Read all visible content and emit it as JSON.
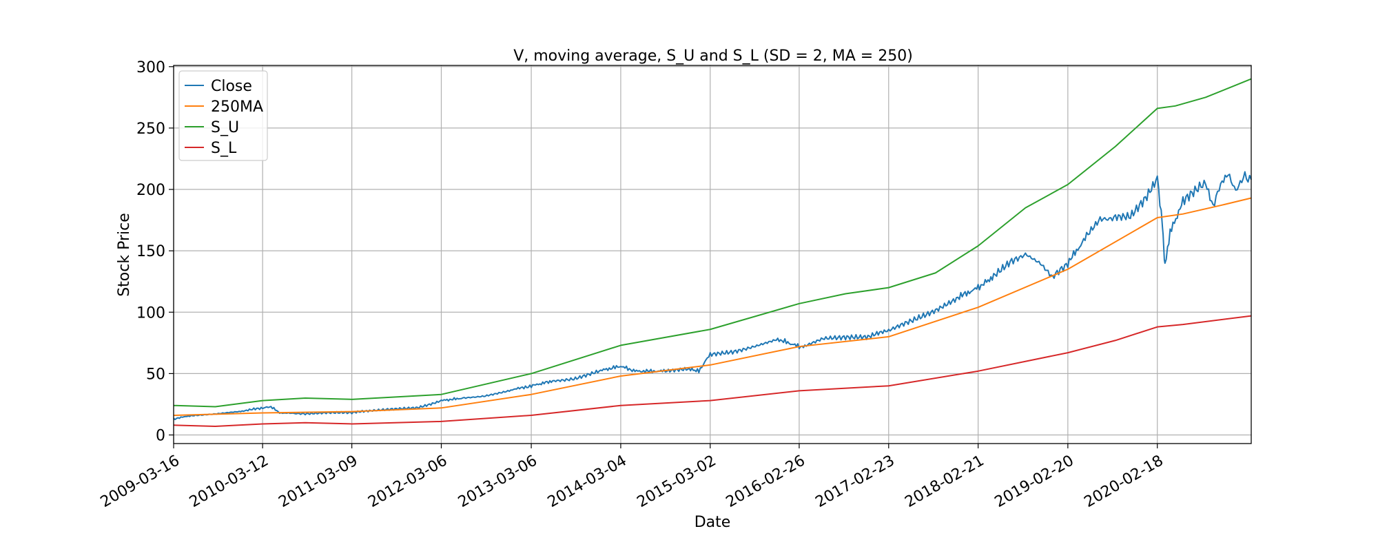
{
  "chart_data": {
    "type": "line",
    "title": "V, moving average, S_U and S_L (SD = 2, MA = 250)",
    "xlabel": "Date",
    "ylabel": "Stock Price",
    "x_ticks": [
      "2009-03-16",
      "2010-03-12",
      "2011-03-09",
      "2012-03-06",
      "2013-03-06",
      "2014-03-04",
      "2015-03-02",
      "2016-02-26",
      "2017-02-23",
      "2018-02-21",
      "2019-02-20",
      "2020-02-18"
    ],
    "y_ticks": [
      0,
      50,
      100,
      150,
      200,
      250,
      300
    ],
    "ylim": [
      -7,
      301
    ],
    "xlim": [
      "2009-03-16",
      "2021-03-05"
    ],
    "grid": true,
    "legend_position": "top-left",
    "series": [
      {
        "name": "Close",
        "color": "#1f77b4",
        "points": [
          [
            "2009-03-16",
            13
          ],
          [
            "2009-06-01",
            16
          ],
          [
            "2009-09-01",
            17
          ],
          [
            "2009-12-01",
            19
          ],
          [
            "2010-03-12",
            22
          ],
          [
            "2010-04-15",
            23
          ],
          [
            "2010-05-20",
            18
          ],
          [
            "2010-07-01",
            18
          ],
          [
            "2010-09-01",
            17
          ],
          [
            "2010-12-01",
            18
          ],
          [
            "2011-03-09",
            18
          ],
          [
            "2011-06-01",
            20
          ],
          [
            "2011-09-01",
            21
          ],
          [
            "2011-12-01",
            22
          ],
          [
            "2012-03-06",
            28
          ],
          [
            "2012-06-01",
            30
          ],
          [
            "2012-09-01",
            32
          ],
          [
            "2012-12-01",
            36
          ],
          [
            "2013-03-06",
            40
          ],
          [
            "2013-06-01",
            44
          ],
          [
            "2013-09-01",
            46
          ],
          [
            "2013-12-01",
            52
          ],
          [
            "2014-03-04",
            56
          ],
          [
            "2014-05-01",
            52
          ],
          [
            "2014-09-01",
            52
          ],
          [
            "2014-12-01",
            54
          ],
          [
            "2015-01-15",
            52
          ],
          [
            "2015-03-02",
            66
          ],
          [
            "2015-06-01",
            68
          ],
          [
            "2015-09-01",
            72
          ],
          [
            "2015-12-01",
            78
          ],
          [
            "2016-02-26",
            72
          ],
          [
            "2016-03-20",
            72
          ],
          [
            "2016-06-01",
            78
          ],
          [
            "2016-09-01",
            80
          ],
          [
            "2016-12-01",
            80
          ],
          [
            "2017-02-23",
            85
          ],
          [
            "2017-06-01",
            93
          ],
          [
            "2017-09-01",
            102
          ],
          [
            "2017-12-01",
            112
          ],
          [
            "2018-02-21",
            120
          ],
          [
            "2018-05-01",
            130
          ],
          [
            "2018-07-01",
            140
          ],
          [
            "2018-09-01",
            148
          ],
          [
            "2018-11-01",
            140
          ],
          [
            "2018-12-20",
            128
          ],
          [
            "2019-02-20",
            140
          ],
          [
            "2019-05-01",
            160
          ],
          [
            "2019-07-01",
            175
          ],
          [
            "2019-09-01",
            178
          ],
          [
            "2019-11-01",
            178
          ],
          [
            "2020-01-01",
            192
          ],
          [
            "2020-02-18",
            210
          ],
          [
            "2020-03-10",
            170
          ],
          [
            "2020-03-20",
            138
          ],
          [
            "2020-04-10",
            165
          ],
          [
            "2020-06-01",
            190
          ],
          [
            "2020-08-01",
            200
          ],
          [
            "2020-09-01",
            205
          ],
          [
            "2020-10-01",
            185
          ],
          [
            "2020-11-01",
            205
          ],
          [
            "2020-12-01",
            212
          ],
          [
            "2021-01-01",
            200
          ],
          [
            "2021-02-01",
            210
          ],
          [
            "2021-03-05",
            208
          ]
        ]
      },
      {
        "name": "250MA",
        "color": "#ff7f0e",
        "points": [
          [
            "2009-03-16",
            16
          ],
          [
            "2010-03-12",
            18
          ],
          [
            "2011-03-09",
            19
          ],
          [
            "2012-03-06",
            22
          ],
          [
            "2013-03-06",
            33
          ],
          [
            "2014-03-04",
            48
          ],
          [
            "2015-03-02",
            57
          ],
          [
            "2016-02-26",
            72
          ],
          [
            "2017-02-23",
            80
          ],
          [
            "2018-02-21",
            104
          ],
          [
            "2019-02-20",
            135
          ],
          [
            "2020-02-18",
            177
          ],
          [
            "2020-06-01",
            180
          ],
          [
            "2020-11-01",
            187
          ],
          [
            "2021-03-05",
            193
          ]
        ]
      },
      {
        "name": "S_U",
        "color": "#2ca02c",
        "points": [
          [
            "2009-03-16",
            24
          ],
          [
            "2009-09-01",
            23
          ],
          [
            "2010-03-12",
            28
          ],
          [
            "2010-09-01",
            30
          ],
          [
            "2011-03-09",
            29
          ],
          [
            "2012-03-06",
            33
          ],
          [
            "2013-03-06",
            50
          ],
          [
            "2014-03-04",
            73
          ],
          [
            "2015-03-02",
            86
          ],
          [
            "2016-02-26",
            107
          ],
          [
            "2016-09-01",
            115
          ],
          [
            "2017-02-23",
            120
          ],
          [
            "2017-09-01",
            132
          ],
          [
            "2018-02-21",
            154
          ],
          [
            "2018-09-01",
            185
          ],
          [
            "2019-02-20",
            204
          ],
          [
            "2019-09-01",
            235
          ],
          [
            "2020-02-18",
            266
          ],
          [
            "2020-05-01",
            268
          ],
          [
            "2020-09-01",
            275
          ],
          [
            "2021-03-05",
            290
          ]
        ]
      },
      {
        "name": "S_L",
        "color": "#d62728",
        "points": [
          [
            "2009-03-16",
            8
          ],
          [
            "2009-09-01",
            7
          ],
          [
            "2010-03-12",
            9
          ],
          [
            "2010-09-01",
            10
          ],
          [
            "2011-03-09",
            9
          ],
          [
            "2012-03-06",
            11
          ],
          [
            "2013-03-06",
            16
          ],
          [
            "2014-03-04",
            24
          ],
          [
            "2015-03-02",
            28
          ],
          [
            "2016-02-26",
            36
          ],
          [
            "2017-02-23",
            40
          ],
          [
            "2018-02-21",
            52
          ],
          [
            "2019-02-20",
            67
          ],
          [
            "2019-09-01",
            77
          ],
          [
            "2020-02-18",
            88
          ],
          [
            "2020-06-01",
            90
          ],
          [
            "2021-03-05",
            97
          ]
        ]
      }
    ]
  }
}
